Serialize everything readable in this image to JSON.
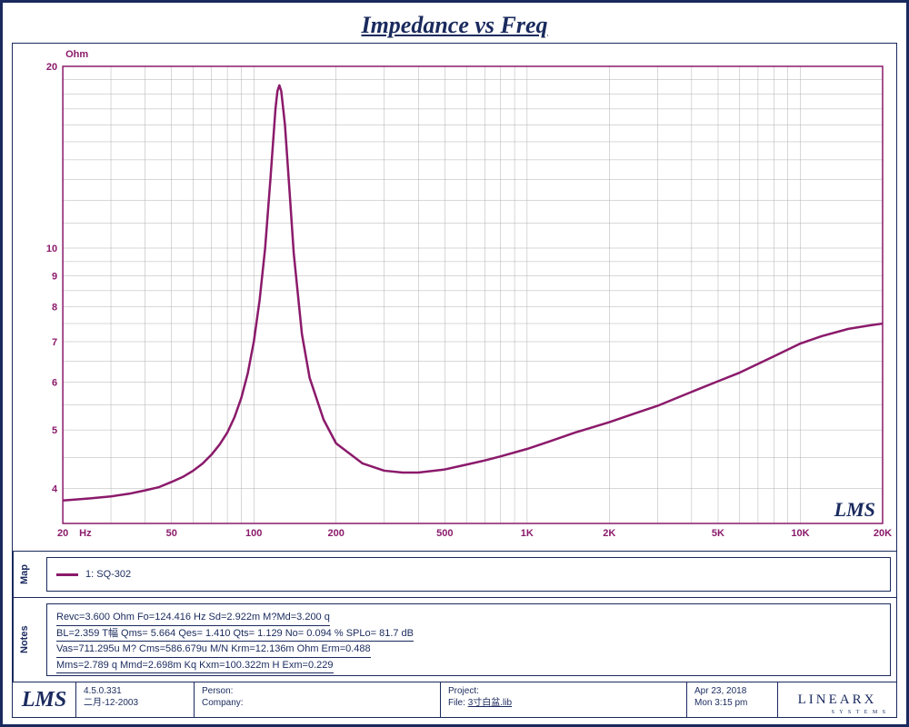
{
  "title": "Impedance vs Freq",
  "chart": {
    "type": "line",
    "y_unit": "Ohm",
    "x_unit": "Hz",
    "watermark": "LMS",
    "line_color": "#8b1a6b",
    "line_width": 2.5,
    "axis_color": "#8b1a6b",
    "grid_color": "#b0b0b0",
    "background_color": "#ffffff",
    "x_scale": "log",
    "y_scale": "log",
    "xlim": [
      20,
      20000
    ],
    "ylim": [
      3.5,
      20
    ],
    "x_ticks": [
      20,
      50,
      100,
      200,
      500,
      1000,
      2000,
      5000,
      10000,
      20000
    ],
    "x_tick_labels": [
      "20",
      "50",
      "100",
      "200",
      "500",
      "1K",
      "2K",
      "5K",
      "10K",
      "20K"
    ],
    "y_ticks": [
      4,
      5,
      6,
      7,
      8,
      9,
      10,
      20
    ],
    "y_tick_labels": [
      "4",
      "5",
      "6",
      "7",
      "8",
      "9",
      "10",
      "20"
    ],
    "data": [
      [
        20,
        3.82
      ],
      [
        25,
        3.85
      ],
      [
        30,
        3.88
      ],
      [
        35,
        3.92
      ],
      [
        40,
        3.97
      ],
      [
        45,
        4.02
      ],
      [
        50,
        4.1
      ],
      [
        55,
        4.18
      ],
      [
        60,
        4.28
      ],
      [
        65,
        4.4
      ],
      [
        70,
        4.55
      ],
      [
        75,
        4.73
      ],
      [
        80,
        4.95
      ],
      [
        85,
        5.25
      ],
      [
        90,
        5.65
      ],
      [
        95,
        6.2
      ],
      [
        100,
        7.0
      ],
      [
        105,
        8.2
      ],
      [
        110,
        10.0
      ],
      [
        115,
        13.0
      ],
      [
        120,
        17.0
      ],
      [
        122,
        18.2
      ],
      [
        124,
        18.6
      ],
      [
        126,
        18.2
      ],
      [
        130,
        16.0
      ],
      [
        135,
        12.5
      ],
      [
        140,
        9.8
      ],
      [
        150,
        7.2
      ],
      [
        160,
        6.1
      ],
      [
        180,
        5.2
      ],
      [
        200,
        4.75
      ],
      [
        250,
        4.4
      ],
      [
        300,
        4.28
      ],
      [
        350,
        4.25
      ],
      [
        400,
        4.25
      ],
      [
        500,
        4.3
      ],
      [
        600,
        4.38
      ],
      [
        700,
        4.45
      ],
      [
        800,
        4.52
      ],
      [
        1000,
        4.65
      ],
      [
        1200,
        4.78
      ],
      [
        1500,
        4.95
      ],
      [
        2000,
        5.15
      ],
      [
        2500,
        5.33
      ],
      [
        3000,
        5.48
      ],
      [
        4000,
        5.78
      ],
      [
        5000,
        6.02
      ],
      [
        6000,
        6.22
      ],
      [
        8000,
        6.62
      ],
      [
        10000,
        6.95
      ],
      [
        12000,
        7.15
      ],
      [
        15000,
        7.35
      ],
      [
        18000,
        7.45
      ],
      [
        20000,
        7.5
      ]
    ]
  },
  "legend": {
    "side_label": "Map",
    "items": [
      {
        "color": "#8b1a6b",
        "label": "1: SQ-302"
      }
    ]
  },
  "notes": {
    "side_label": "Notes",
    "lines": [
      "Revc=3.600 Ohm  Fo=124.416 Hz  Sd=2.922m M?Md=3.200 q",
      "BL=2.359 T幅  Qms= 5.664  Qes= 1.410  Qts= 1.129  No= 0.094 %  SPLo= 81.7 dB",
      "Vas=711.295u M?  Cms=586.679u M/N  Krm=12.136m Ohm  Erm=0.488",
      "Mms=2.789 q  Mmd=2.698m Kq  Kxm=100.322m H  Exm=0.229"
    ]
  },
  "footer": {
    "lms": "LMS",
    "version": "4.5.0.331",
    "build_date": "二月-12-2003",
    "person_label": "Person:",
    "person_value": "",
    "company_label": "Company:",
    "company_value": "",
    "project_label": "Project:",
    "project_value": "",
    "file_label": "File:",
    "file_value": "3寸白盆.lib",
    "date": "Apr 23, 2018",
    "time": "Mon  3:15 pm",
    "linearx": "LINEARX",
    "linearx_sub": "S Y S T E M S"
  },
  "colors": {
    "frame": "#1a2a5e",
    "text": "#1a2a5e",
    "series": "#8b1a6b"
  }
}
